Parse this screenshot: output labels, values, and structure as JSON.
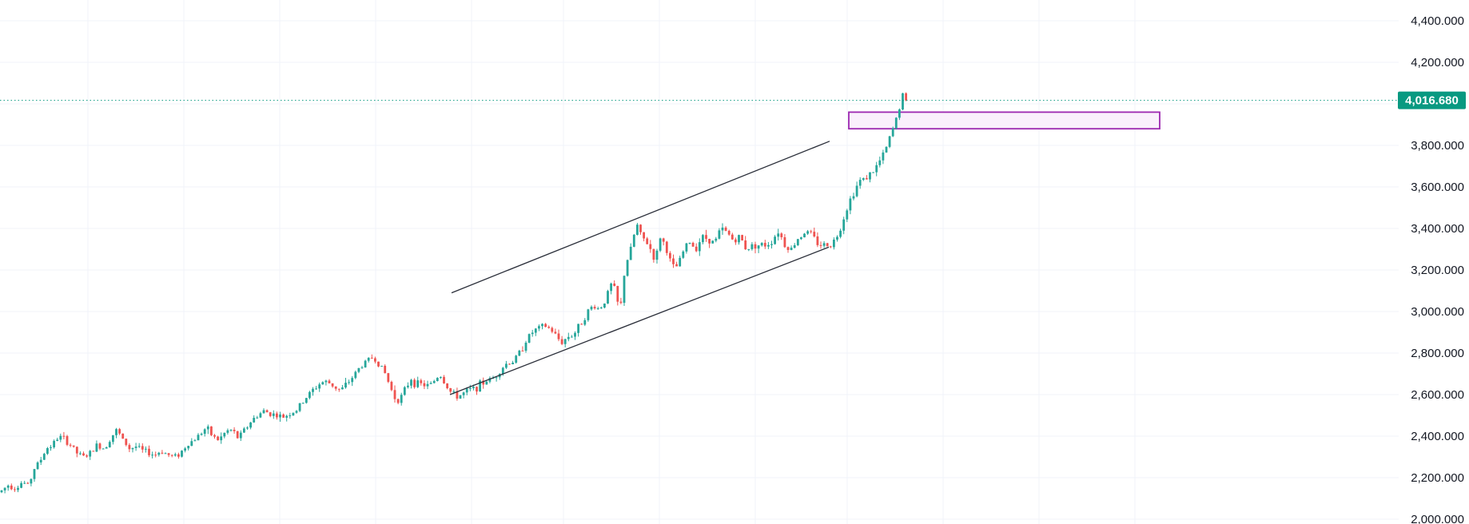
{
  "chart_data": {
    "type": "candlestick",
    "title": "",
    "xlabel": "",
    "ylabel": "",
    "ylim": [
      2000,
      4500
    ],
    "grid": true,
    "y_ticks": [
      {
        "value": 2000,
        "label": "2,000.000"
      },
      {
        "value": 2200,
        "label": "2,200.000"
      },
      {
        "value": 2400,
        "label": "2,400.000"
      },
      {
        "value": 2600,
        "label": "2,600.000"
      },
      {
        "value": 2800,
        "label": "2,800.000"
      },
      {
        "value": 3000,
        "label": "3,000.000"
      },
      {
        "value": 3200,
        "label": "3,200.000"
      },
      {
        "value": 3400,
        "label": "3,400.000"
      },
      {
        "value": 3600,
        "label": "3,600.000"
      },
      {
        "value": 3800,
        "label": "3,800.000"
      },
      {
        "value": 4000,
        "label": "4,000.000"
      },
      {
        "value": 4200,
        "label": "4,200.000"
      },
      {
        "value": 4400,
        "label": "4,400.000"
      }
    ],
    "hidden_tick_values": [
      4000
    ],
    "last_price": {
      "value": 4016.68,
      "label": "4,016.680"
    },
    "price_path": [
      [
        0,
        2130
      ],
      [
        10,
        2165
      ],
      [
        20,
        2150
      ],
      [
        28,
        2180
      ],
      [
        36,
        2160
      ],
      [
        42,
        2240
      ],
      [
        50,
        2280
      ],
      [
        58,
        2340
      ],
      [
        66,
        2360
      ],
      [
        74,
        2400
      ],
      [
        82,
        2380
      ],
      [
        90,
        2350
      ],
      [
        98,
        2310
      ],
      [
        106,
        2300
      ],
      [
        114,
        2320
      ],
      [
        122,
        2360
      ],
      [
        130,
        2340
      ],
      [
        138,
        2390
      ],
      [
        146,
        2430
      ],
      [
        154,
        2380
      ],
      [
        162,
        2340
      ],
      [
        170,
        2350
      ],
      [
        178,
        2330
      ],
      [
        186,
        2320
      ],
      [
        194,
        2310
      ],
      [
        202,
        2330
      ],
      [
        210,
        2310
      ],
      [
        218,
        2300
      ],
      [
        226,
        2320
      ],
      [
        234,
        2360
      ],
      [
        242,
        2380
      ],
      [
        250,
        2410
      ],
      [
        258,
        2440
      ],
      [
        266,
        2400
      ],
      [
        274,
        2380
      ],
      [
        282,
        2420
      ],
      [
        290,
        2430
      ],
      [
        298,
        2390
      ],
      [
        306,
        2430
      ],
      [
        314,
        2470
      ],
      [
        322,
        2500
      ],
      [
        330,
        2520
      ],
      [
        338,
        2510
      ],
      [
        346,
        2500
      ],
      [
        354,
        2490
      ],
      [
        362,
        2510
      ],
      [
        370,
        2520
      ],
      [
        378,
        2560
      ],
      [
        386,
        2600
      ],
      [
        394,
        2630
      ],
      [
        402,
        2660
      ],
      [
        410,
        2660
      ],
      [
        418,
        2640
      ],
      [
        426,
        2620
      ],
      [
        434,
        2650
      ],
      [
        442,
        2690
      ],
      [
        450,
        2730
      ],
      [
        458,
        2760
      ],
      [
        466,
        2780
      ],
      [
        474,
        2750
      ],
      [
        482,
        2700
      ],
      [
        490,
        2620
      ],
      [
        496,
        2570
      ],
      [
        502,
        2590
      ],
      [
        508,
        2630
      ],
      [
        514,
        2680
      ],
      [
        520,
        2650
      ],
      [
        528,
        2650
      ],
      [
        536,
        2640
      ],
      [
        544,
        2670
      ],
      [
        550,
        2700
      ],
      [
        556,
        2660
      ],
      [
        562,
        2620
      ],
      [
        570,
        2590
      ],
      [
        578,
        2600
      ],
      [
        586,
        2620
      ],
      [
        594,
        2630
      ],
      [
        602,
        2650
      ],
      [
        610,
        2670
      ],
      [
        618,
        2680
      ],
      [
        626,
        2720
      ],
      [
        634,
        2750
      ],
      [
        642,
        2760
      ],
      [
        650,
        2800
      ],
      [
        658,
        2860
      ],
      [
        666,
        2900
      ],
      [
        674,
        2920
      ],
      [
        682,
        2930
      ],
      [
        690,
        2910
      ],
      [
        698,
        2870
      ],
      [
        704,
        2850
      ],
      [
        710,
        2880
      ],
      [
        718,
        2890
      ],
      [
        726,
        2940
      ],
      [
        734,
        2990
      ],
      [
        742,
        3030
      ],
      [
        750,
        3010
      ],
      [
        758,
        3060
      ],
      [
        764,
        3130
      ],
      [
        768,
        3120
      ],
      [
        772,
        3060
      ],
      [
        775,
        2990
      ],
      [
        778,
        3060
      ],
      [
        782,
        3220
      ],
      [
        788,
        3280
      ],
      [
        794,
        3380
      ],
      [
        798,
        3420
      ],
      [
        802,
        3360
      ],
      [
        808,
        3340
      ],
      [
        814,
        3300
      ],
      [
        820,
        3240
      ],
      [
        826,
        3360
      ],
      [
        832,
        3320
      ],
      [
        838,
        3250
      ],
      [
        844,
        3200
      ],
      [
        850,
        3240
      ],
      [
        856,
        3300
      ],
      [
        862,
        3340
      ],
      [
        870,
        3300
      ],
      [
        878,
        3360
      ],
      [
        886,
        3350
      ],
      [
        894,
        3330
      ],
      [
        902,
        3400
      ],
      [
        910,
        3380
      ],
      [
        918,
        3340
      ],
      [
        926,
        3360
      ],
      [
        934,
        3300
      ],
      [
        942,
        3320
      ],
      [
        950,
        3320
      ],
      [
        958,
        3320
      ],
      [
        966,
        3340
      ],
      [
        974,
        3390
      ],
      [
        982,
        3320
      ],
      [
        990,
        3300
      ],
      [
        998,
        3350
      ],
      [
        1006,
        3380
      ],
      [
        1014,
        3380
      ],
      [
        1022,
        3330
      ],
      [
        1030,
        3320
      ],
      [
        1038,
        3320
      ],
      [
        1046,
        3350
      ],
      [
        1052,
        3410
      ],
      [
        1058,
        3480
      ],
      [
        1064,
        3540
      ],
      [
        1070,
        3590
      ],
      [
        1076,
        3630
      ],
      [
        1082,
        3640
      ],
      [
        1088,
        3660
      ],
      [
        1094,
        3680
      ],
      [
        1100,
        3720
      ],
      [
        1106,
        3760
      ],
      [
        1112,
        3820
      ],
      [
        1118,
        3890
      ],
      [
        1124,
        3960
      ],
      [
        1128,
        4030
      ],
      [
        1132,
        4060
      ],
      [
        1136,
        4016.68
      ]
    ],
    "drawings": {
      "channel_upper": {
        "from": {
          "x": 565,
          "y": 3090
        },
        "to": {
          "x": 1038,
          "y": 3820
        }
      },
      "channel_lower": {
        "from": {
          "x": 563,
          "y": 2600
        },
        "to": {
          "x": 1037,
          "y": 3310
        }
      },
      "zone": {
        "x_start": 1062,
        "x_end": 1451,
        "y_low": 3880,
        "y_high": 3960
      }
    },
    "colors": {
      "up": "#26a69a",
      "down": "#ef5350",
      "grid": "#f0f3fa",
      "axis_text": "#131722",
      "last_price_tag": "#089981",
      "last_price_line": "#089981",
      "trend_line": "#2a2e39",
      "zone_border": "#9c27b0",
      "zone_fill": "#faf0fc"
    }
  }
}
